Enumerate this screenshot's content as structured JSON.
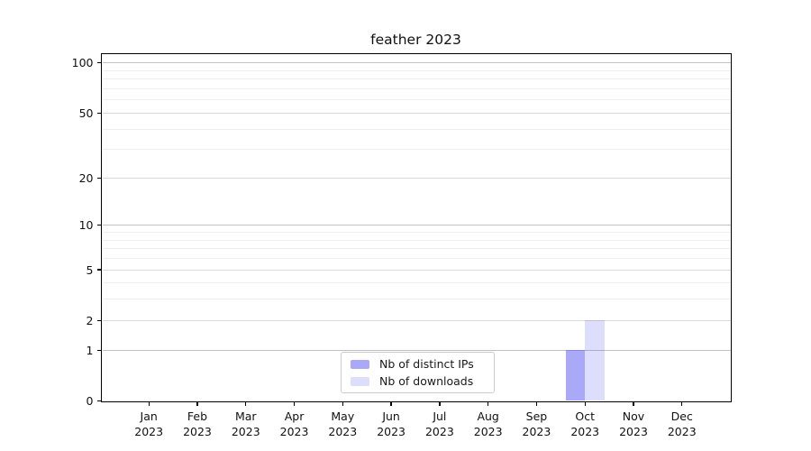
{
  "chart_data": {
    "type": "bar",
    "title": "feather 2023",
    "categories": [
      "Jan 2023",
      "Feb 2023",
      "Mar 2023",
      "Apr 2023",
      "May 2023",
      "Jun 2023",
      "Jul 2023",
      "Aug 2023",
      "Sep 2023",
      "Oct 2023",
      "Nov 2023",
      "Dec 2023"
    ],
    "series": [
      {
        "name": "Nb of distinct IPs",
        "color": "rgba(73,73,239,0.47)",
        "values": [
          0,
          0,
          0,
          0,
          0,
          0,
          0,
          0,
          0,
          1,
          0,
          0
        ]
      },
      {
        "name": "Nb of downloads",
        "color": "rgba(73,73,239,0.19)",
        "values": [
          0,
          0,
          0,
          0,
          0,
          0,
          0,
          0,
          0,
          2,
          0,
          0
        ]
      }
    ],
    "y_axis": {
      "scale": "log1p",
      "major_ticks": [
        0,
        1,
        2,
        5,
        10,
        20,
        50,
        100
      ],
      "emphasized_gridlines": [
        1,
        10,
        100
      ],
      "minor_gridlines": [
        3,
        4,
        6,
        7,
        8,
        9,
        30,
        40,
        60,
        70,
        80,
        90
      ],
      "max_value": 113
    },
    "x_axis": {
      "tick_labels_two_line": true
    },
    "legend": {
      "position": "bottom-center"
    },
    "grid": true,
    "colors": {
      "emphasized_grid": "#c2c2c2",
      "major_grid": "#d9d9d9",
      "minor_grid": "#eeeeee",
      "axis": "#000000",
      "text": "#1a1a1a",
      "background": "#ffffff"
    }
  }
}
